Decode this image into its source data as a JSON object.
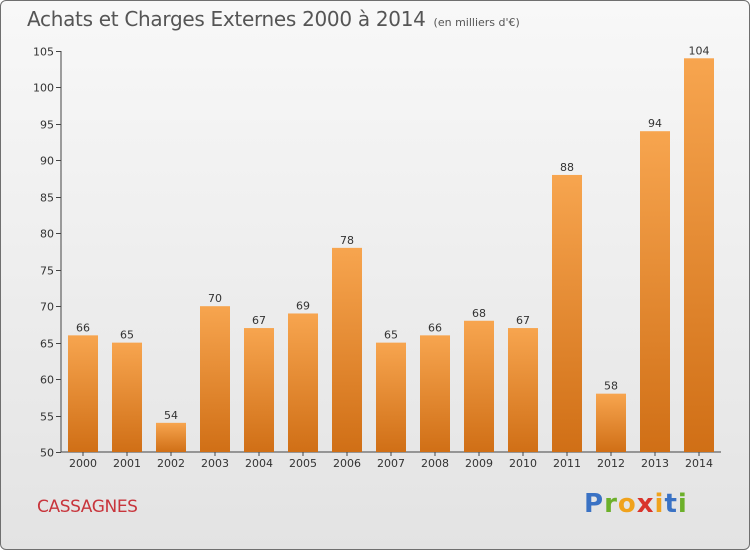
{
  "header": {
    "title": "Achats et Charges Externes 2000 à 2014",
    "unit": "(en milliers d'€)"
  },
  "location": "CASSAGNES",
  "brand": {
    "letters": [
      "P",
      "r",
      "o",
      "x",
      "i",
      "t",
      "i"
    ]
  },
  "colors": {
    "bar_top": "#f7a54f",
    "bar_bottom": "#d06f16",
    "city": "#c8353c",
    "logo": [
      "#3a72c4",
      "#6cb02a",
      "#f0a21c",
      "#d9342b",
      "#f0a21c",
      "#3a72c4",
      "#6cb02a"
    ]
  },
  "chart_data": {
    "type": "bar",
    "title": "Achats et Charges Externes 2000 à 2014",
    "subtitle": "(en milliers d'€)",
    "xlabel": "",
    "ylabel": "",
    "categories": [
      "2000",
      "2001",
      "2002",
      "2003",
      "2004",
      "2005",
      "2006",
      "2007",
      "2008",
      "2009",
      "2010",
      "2011",
      "2012",
      "2013",
      "2014"
    ],
    "values": [
      66,
      65,
      54,
      70,
      67,
      69,
      78,
      65,
      66,
      68,
      67,
      88,
      58,
      94,
      104
    ],
    "ylim": [
      50,
      105
    ],
    "yticks": [
      50,
      55,
      60,
      65,
      70,
      75,
      80,
      85,
      90,
      95,
      100,
      105
    ],
    "grid": false,
    "legend": "none"
  }
}
